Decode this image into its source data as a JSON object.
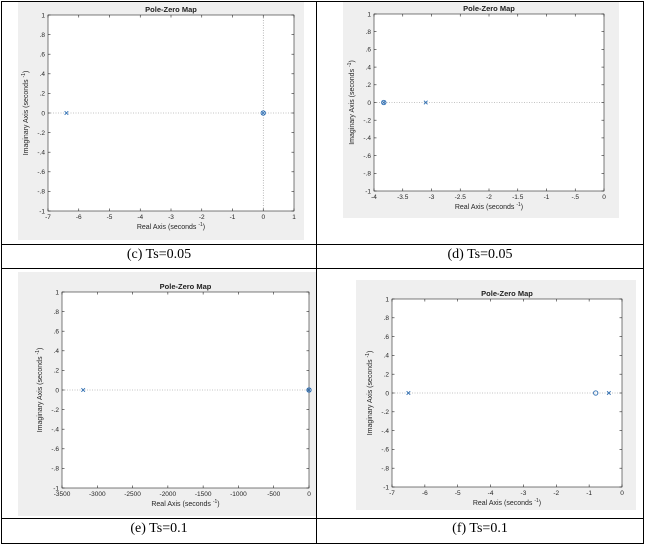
{
  "charts": {
    "c": {
      "type": "scatter",
      "title": "Pole-Zero Map",
      "xlabel": "Real Axis (seconds",
      "ylabel": "Imaginary Axis (seconds",
      "unit_exp": "-1",
      "xlim": [
        -7,
        1
      ],
      "ylim": [
        -1,
        1
      ],
      "xticks": [
        -7,
        -6,
        -5,
        -4,
        -3,
        -2,
        -1,
        0,
        1
      ],
      "yticks": [
        -1,
        -0.8,
        -0.6,
        -0.4,
        -0.2,
        0,
        0.2,
        0.4,
        0.6,
        0.8,
        1
      ],
      "poles": [
        {
          "x": -6.4,
          "y": 0
        },
        {
          "x": 0,
          "y": 0
        }
      ],
      "zeros": [
        {
          "x": 0,
          "y": 0
        }
      ],
      "vguide": 0,
      "caption": "(c) Ts=0.05"
    },
    "d": {
      "type": "scatter",
      "title": "Pole-Zero Map",
      "xlabel": "Real Axis (seconds",
      "ylabel": "Imaginary Axis (seconds",
      "unit_exp": "-1",
      "xlim": [
        -4,
        0
      ],
      "ylim": [
        -1,
        1
      ],
      "xticks": [
        -4,
        -3.5,
        -3,
        -2.5,
        -2,
        -1.5,
        -1,
        -0.5,
        0
      ],
      "yticks": [
        -1,
        -0.8,
        -0.6,
        -0.4,
        -0.2,
        0,
        0.2,
        0.4,
        0.6,
        0.8,
        1
      ],
      "poles": [
        {
          "x": -3.83,
          "y": 0
        },
        {
          "x": -3.1,
          "y": 0
        }
      ],
      "zeros": [
        {
          "x": -3.83,
          "y": 0
        }
      ],
      "caption": "(d) Ts=0.05"
    },
    "e": {
      "type": "scatter",
      "title": "Pole-Zero Map",
      "xlabel": "Real Axis (seconds",
      "ylabel": "Imaginary Axis (seconds",
      "unit_exp": "-1",
      "xlim": [
        -3500,
        0
      ],
      "ylim": [
        -1,
        1
      ],
      "xticks": [
        -3500,
        -3000,
        -2500,
        -2000,
        -1500,
        -1000,
        -500,
        0
      ],
      "yticks": [
        -1,
        -0.8,
        -0.6,
        -0.4,
        -0.2,
        0,
        0.2,
        0.4,
        0.6,
        0.8,
        1
      ],
      "poles": [
        {
          "x": -3200,
          "y": 0
        },
        {
          "x": 0,
          "y": 0
        }
      ],
      "zeros": [
        {
          "x": 0,
          "y": 0
        }
      ],
      "caption": "(e) Ts=0.1"
    },
    "f": {
      "type": "scatter",
      "title": "Pole-Zero Map",
      "xlabel": "Real Axis (seconds",
      "ylabel": "Imaginary Axis (seconds",
      "unit_exp": "-1",
      "xlim": [
        -7,
        0
      ],
      "ylim": [
        -1,
        1
      ],
      "xticks": [
        -7,
        -6,
        -5,
        -4,
        -3,
        -2,
        -1,
        0
      ],
      "yticks": [
        -1,
        -0.8,
        -0.6,
        -0.4,
        -0.2,
        0,
        0.2,
        0.4,
        0.6,
        0.8,
        1
      ],
      "poles": [
        {
          "x": -6.5,
          "y": 0
        },
        {
          "x": -0.4,
          "y": 0
        }
      ],
      "zeros": [
        {
          "x": -0.8,
          "y": 0
        }
      ],
      "caption": "(f) Ts=0.1"
    }
  }
}
